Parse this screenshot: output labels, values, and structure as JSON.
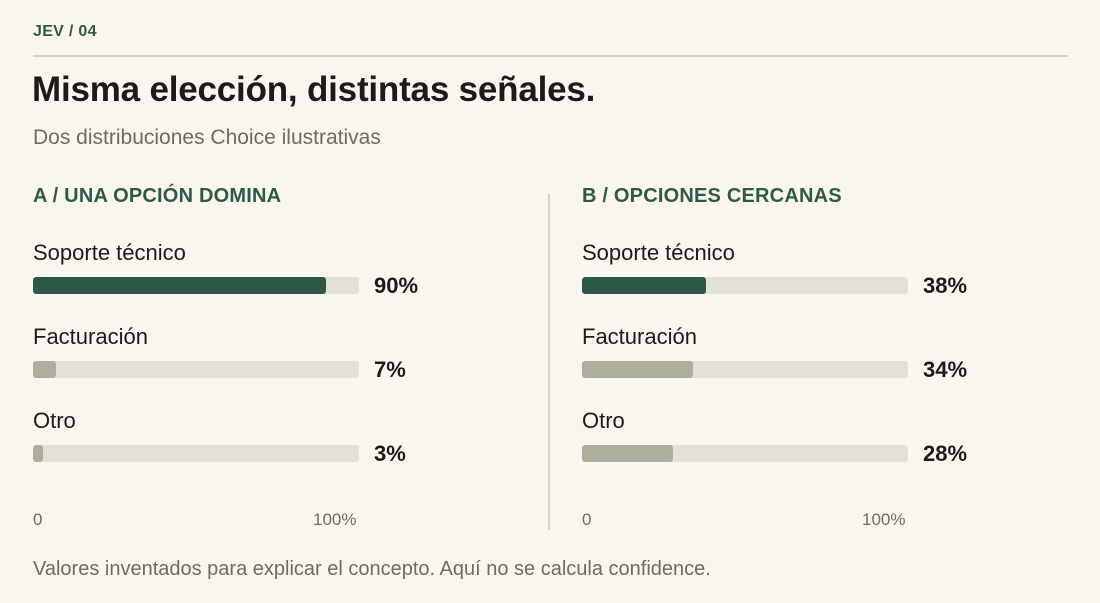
{
  "header": {
    "kicker": "JEV / 04",
    "title": "Misma elección, distintas señales.",
    "subtitle": "Dos distribuciones Choice ilustrativas"
  },
  "footnote": "Valores inventados para explicar el concepto. Aquí no se calcula confidence.",
  "colors": {
    "accent": "#2e5a45",
    "lead_bar": "#2c5945",
    "other_bar": "#adaf9c",
    "track": "#e3e0d8",
    "background": "#faf6ef"
  },
  "chart_data": [
    {
      "type": "bar",
      "orientation": "horizontal",
      "title": "A / UNA OPCIÓN DOMINA",
      "categories": [
        "Soporte técnico",
        "Facturación",
        "Otro"
      ],
      "values": [
        90,
        7,
        3
      ],
      "value_labels": [
        "90%",
        "7%",
        "3%"
      ],
      "xlim": [
        0,
        100
      ],
      "axis_labels": {
        "min": "0",
        "max": "100%"
      }
    },
    {
      "type": "bar",
      "orientation": "horizontal",
      "title": "B / OPCIONES CERCANAS",
      "categories": [
        "Soporte técnico",
        "Facturación",
        "Otro"
      ],
      "values": [
        38,
        34,
        28
      ],
      "value_labels": [
        "38%",
        "34%",
        "28%"
      ],
      "xlim": [
        0,
        100
      ],
      "axis_labels": {
        "min": "0",
        "max": "100%"
      }
    }
  ]
}
